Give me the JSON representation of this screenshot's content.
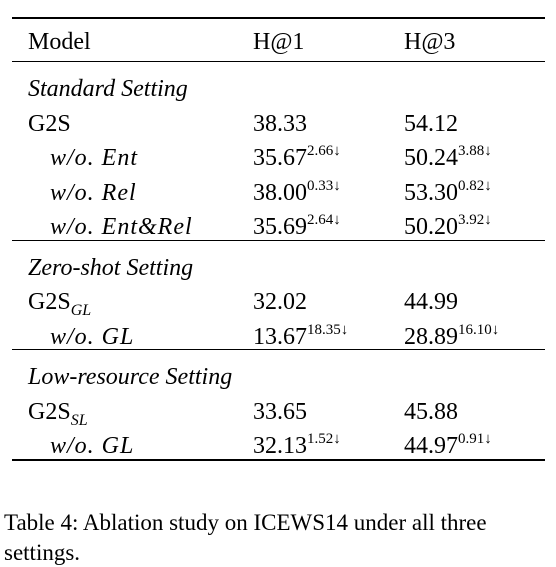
{
  "header": {
    "model": "Model",
    "h1": "H@1",
    "h3": "H@3"
  },
  "sections": [
    {
      "title": "Standard Setting",
      "rows": [
        {
          "model": "G2S",
          "h1": "38.33",
          "h3": "54.12"
        },
        {
          "model": "w/o. Ent",
          "indent": true,
          "h1": "35.67",
          "h1_drop": "2.66↓",
          "h3": "50.24",
          "h3_drop": "3.88↓"
        },
        {
          "model": "w/o. Rel",
          "indent": true,
          "h1": "38.00",
          "h1_drop": "0.33↓",
          "h3": "53.30",
          "h3_drop": "0.82↓"
        },
        {
          "model": "w/o. Ent&Rel",
          "indent": true,
          "h1": "35.69",
          "h1_drop": "2.64↓",
          "h3": "50.20",
          "h3_drop": "3.92↓"
        }
      ]
    },
    {
      "title": "Zero-shot Setting",
      "rows": [
        {
          "model": "G2S",
          "sub": "GL",
          "h1": "32.02",
          "h3": "44.99"
        },
        {
          "model": "w/o. GL",
          "indent": true,
          "h1": "13.67",
          "h1_drop": "18.35↓",
          "h3": "28.89",
          "h3_drop": "16.10↓"
        }
      ]
    },
    {
      "title": "Low-resource Setting",
      "rows": [
        {
          "model": "G2S",
          "sub": "SL",
          "h1": "33.65",
          "h3": "45.88"
        },
        {
          "model": "w/o. GL",
          "indent": true,
          "h1": "32.13",
          "h1_drop": "1.52↓",
          "h3": "44.97",
          "h3_drop": "0.91↓"
        }
      ]
    }
  ],
  "caption": "Table 4: Ablation study on ICEWS14 under all three settings."
}
